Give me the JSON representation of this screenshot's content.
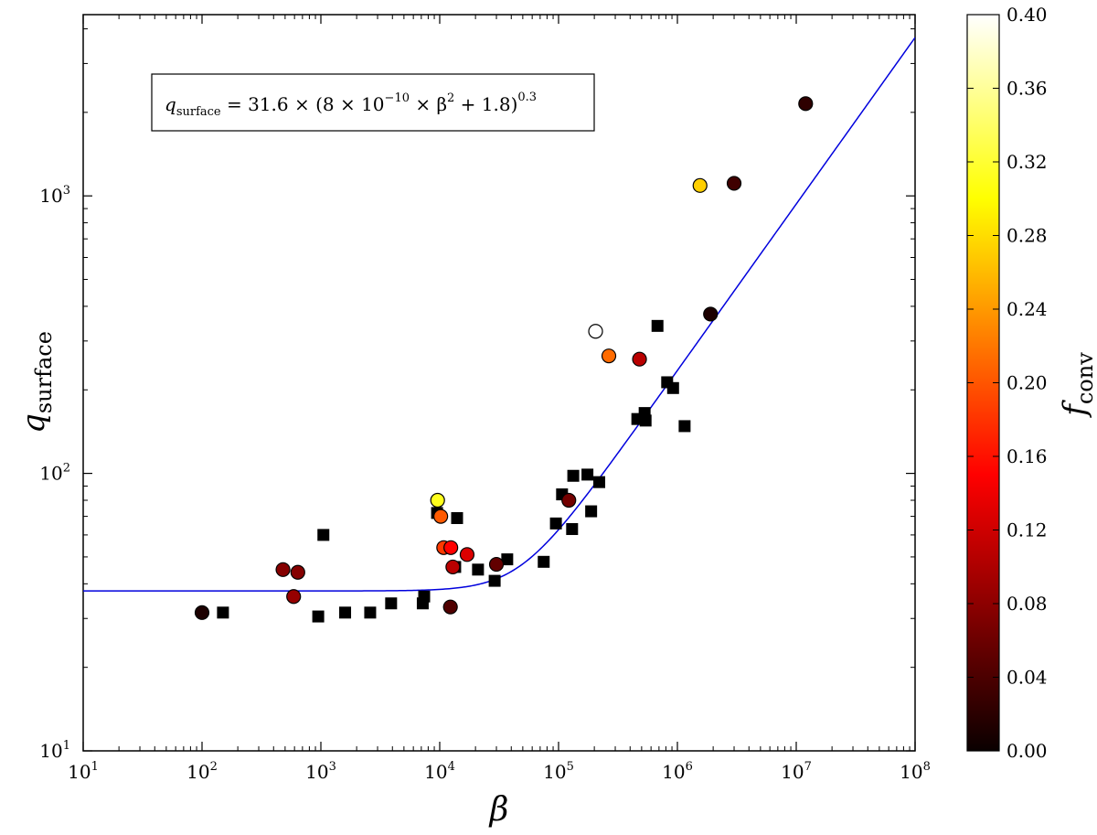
{
  "chart_data": {
    "type": "scatter",
    "xlabel": "β",
    "ylabel": {
      "base": "q",
      "sub": "surface"
    },
    "x_scale": "log",
    "y_scale": "log",
    "xlim": [
      10,
      100000000
    ],
    "ylim": [
      10,
      4500
    ],
    "x_ticks": [
      {
        "value": 10,
        "base": "10",
        "exp": "1"
      },
      {
        "value": 100,
        "base": "10",
        "exp": "2"
      },
      {
        "value": 1000,
        "base": "10",
        "exp": "3"
      },
      {
        "value": 10000,
        "base": "10",
        "exp": "4"
      },
      {
        "value": 100000,
        "base": "10",
        "exp": "5"
      },
      {
        "value": 1000000,
        "base": "10",
        "exp": "6"
      },
      {
        "value": 10000000,
        "base": "10",
        "exp": "7"
      },
      {
        "value": 100000000,
        "base": "10",
        "exp": "8"
      }
    ],
    "y_ticks": [
      {
        "value": 10,
        "base": "10",
        "exp": "1"
      },
      {
        "value": 100,
        "base": "10",
        "exp": "2"
      },
      {
        "value": 1000,
        "base": "10",
        "exp": "3"
      }
    ],
    "grid": false,
    "annotation": {
      "parts": [
        "q",
        "surface",
        " = 31.6 × (8 × 10",
        "−10",
        " × β",
        "2",
        " + 1.8)",
        "0.3"
      ]
    },
    "fit_curve": {
      "color": "#0000dd",
      "a": 31.6,
      "b": 8e-10,
      "c": 1.8,
      "p": 0.3
    },
    "colorbar": {
      "label": {
        "base": "f",
        "sub": "conv"
      },
      "min": 0.0,
      "max": 0.4,
      "colormap": "hot",
      "ticks": [
        "0.00",
        "0.04",
        "0.08",
        "0.12",
        "0.16",
        "0.20",
        "0.24",
        "0.28",
        "0.32",
        "0.36",
        "0.40"
      ]
    },
    "series": [
      {
        "marker": "square",
        "color": "#000000",
        "points": [
          [
            150,
            31.5
          ],
          [
            1050,
            60
          ],
          [
            950,
            30.5
          ],
          [
            1600,
            31.5
          ],
          [
            2600,
            31.5
          ],
          [
            3900,
            34
          ],
          [
            7200,
            34
          ],
          [
            7400,
            36
          ],
          [
            9500,
            72
          ],
          [
            14000,
            69
          ],
          [
            13500,
            46
          ],
          [
            21000,
            45
          ],
          [
            29000,
            41
          ],
          [
            37000,
            49
          ],
          [
            75000,
            48
          ],
          [
            95000,
            66
          ],
          [
            107000,
            84
          ],
          [
            130000,
            63
          ],
          [
            133000,
            98
          ],
          [
            175000,
            99
          ],
          [
            188000,
            73
          ],
          [
            220000,
            93
          ],
          [
            460000,
            157
          ],
          [
            530000,
            165
          ],
          [
            540000,
            155
          ],
          [
            680000,
            340
          ],
          [
            820000,
            213
          ],
          [
            920000,
            203
          ],
          [
            1150000,
            148
          ]
        ]
      },
      {
        "marker": "circle",
        "points": [
          {
            "x": 100,
            "y": 31.5,
            "f": 0.01
          },
          {
            "x": 480,
            "y": 45,
            "f": 0.07
          },
          {
            "x": 590,
            "y": 36,
            "f": 0.08
          },
          {
            "x": 640,
            "y": 44,
            "f": 0.07
          },
          {
            "x": 9600,
            "y": 80,
            "f": 0.31
          },
          {
            "x": 10200,
            "y": 70,
            "f": 0.2
          },
          {
            "x": 10800,
            "y": 54,
            "f": 0.18
          },
          {
            "x": 12400,
            "y": 54,
            "f": 0.14
          },
          {
            "x": 12900,
            "y": 46,
            "f": 0.1
          },
          {
            "x": 12300,
            "y": 33,
            "f": 0.04
          },
          {
            "x": 17000,
            "y": 51,
            "f": 0.12
          },
          {
            "x": 30000,
            "y": 47,
            "f": 0.05
          },
          {
            "x": 122000,
            "y": 80,
            "f": 0.06
          },
          {
            "x": 205000,
            "y": 325,
            "f": 0.4
          },
          {
            "x": 265000,
            "y": 265,
            "f": 0.21
          },
          {
            "x": 480000,
            "y": 258,
            "f": 0.1
          },
          {
            "x": 1550000,
            "y": 1090,
            "f": 0.27
          },
          {
            "x": 1900000,
            "y": 375,
            "f": 0.01
          },
          {
            "x": 3000000,
            "y": 1110,
            "f": 0.03
          },
          {
            "x": 12000000,
            "y": 2150,
            "f": 0.02
          }
        ]
      }
    ]
  }
}
